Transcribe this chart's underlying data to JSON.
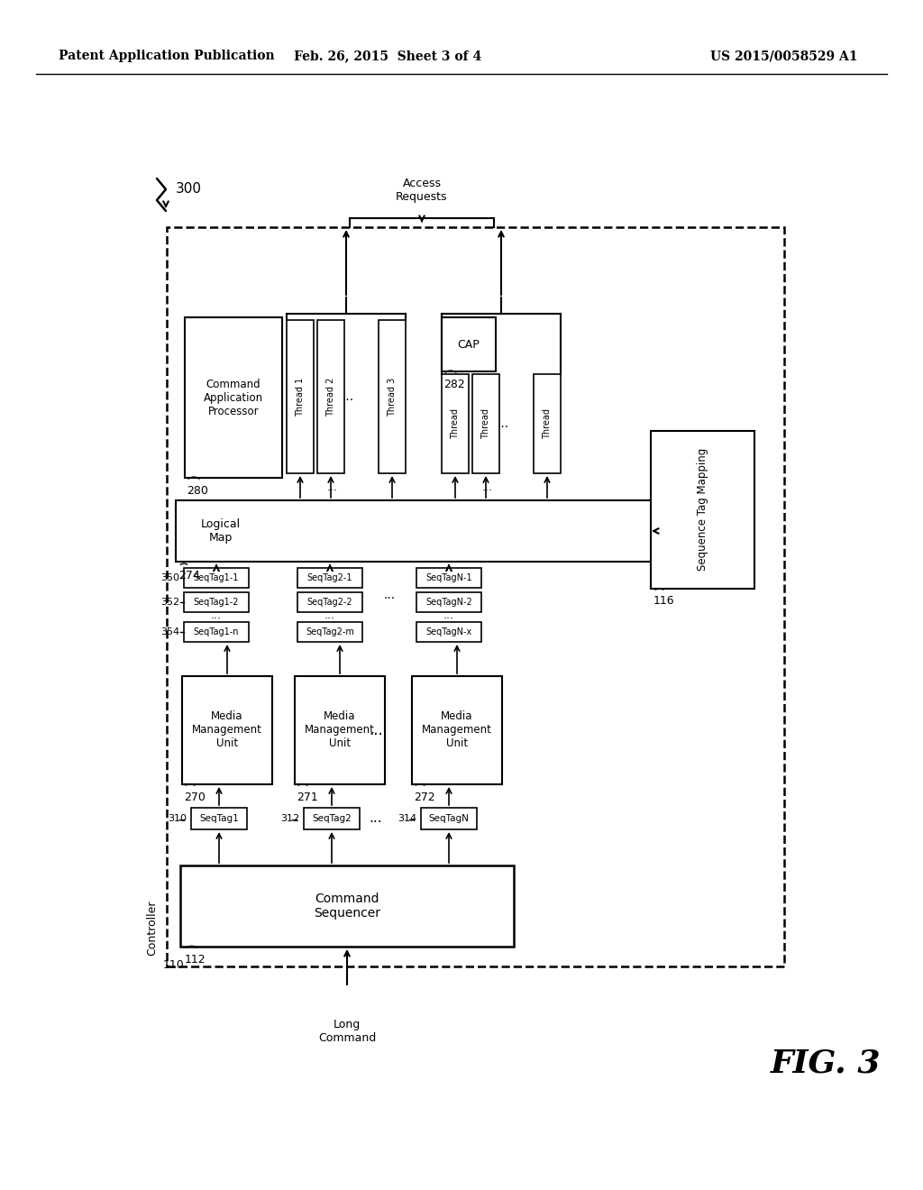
{
  "header_left": "Patent Application Publication",
  "header_mid": "Feb. 26, 2015  Sheet 3 of 4",
  "header_right": "US 2015/0058529 A1",
  "fig_label": "FIG. 3",
  "diagram_label": "300",
  "controller_label": "110",
  "controller_text": "Controller",
  "cmd_seq_label": "112",
  "cmd_seq_text": "Command\nSequencer",
  "long_cmd_text": "Long\nCommand",
  "mmu1_label": "270",
  "mmu1_text": "Media\nManagement\nUnit",
  "mmu2_label": "271",
  "mmu2_text": "Media\nManagement\nUnit",
  "mmu3_label": "272",
  "mmu3_text": "Media\nManagement\nUnit",
  "logical_map_label": "274",
  "logical_map_text": "Logical\nMap",
  "cap1_label": "280",
  "cap1_text": "Command\nApplication\nProcessor",
  "cap2_label": "282",
  "cap2_text": "CAP",
  "seq_tag_mapping_label": "116",
  "seq_tag_mapping_text": "Sequence Tag Mapping",
  "access_requests_text": "Access\nRequests",
  "seqtag1_label": "310",
  "seqtag1_text": "SeqTag1",
  "seqtag2_label": "312",
  "seqtag2_text": "SeqTag2",
  "seqtagN_label": "314",
  "seqtagN_text": "SeqTagN",
  "seqtag1_1": "SeqTag1-1",
  "seqtag1_2": "SeqTag1-2",
  "seqtag1_n": "SeqTag1-n",
  "label_350": "350",
  "label_352": "352",
  "label_354": "354",
  "seqtag2_1": "SeqTag2-1",
  "seqtag2_2": "SeqTag2-2",
  "seqtag2_m": "SeqTag2-m",
  "seqtagN_1": "SeqTagN-1",
  "seqtagN_2": "SeqTagN-2",
  "seqtagN_x": "SeqTagN-x",
  "bg_color": "#ffffff",
  "box_color": "#000000",
  "text_color": "#000000"
}
